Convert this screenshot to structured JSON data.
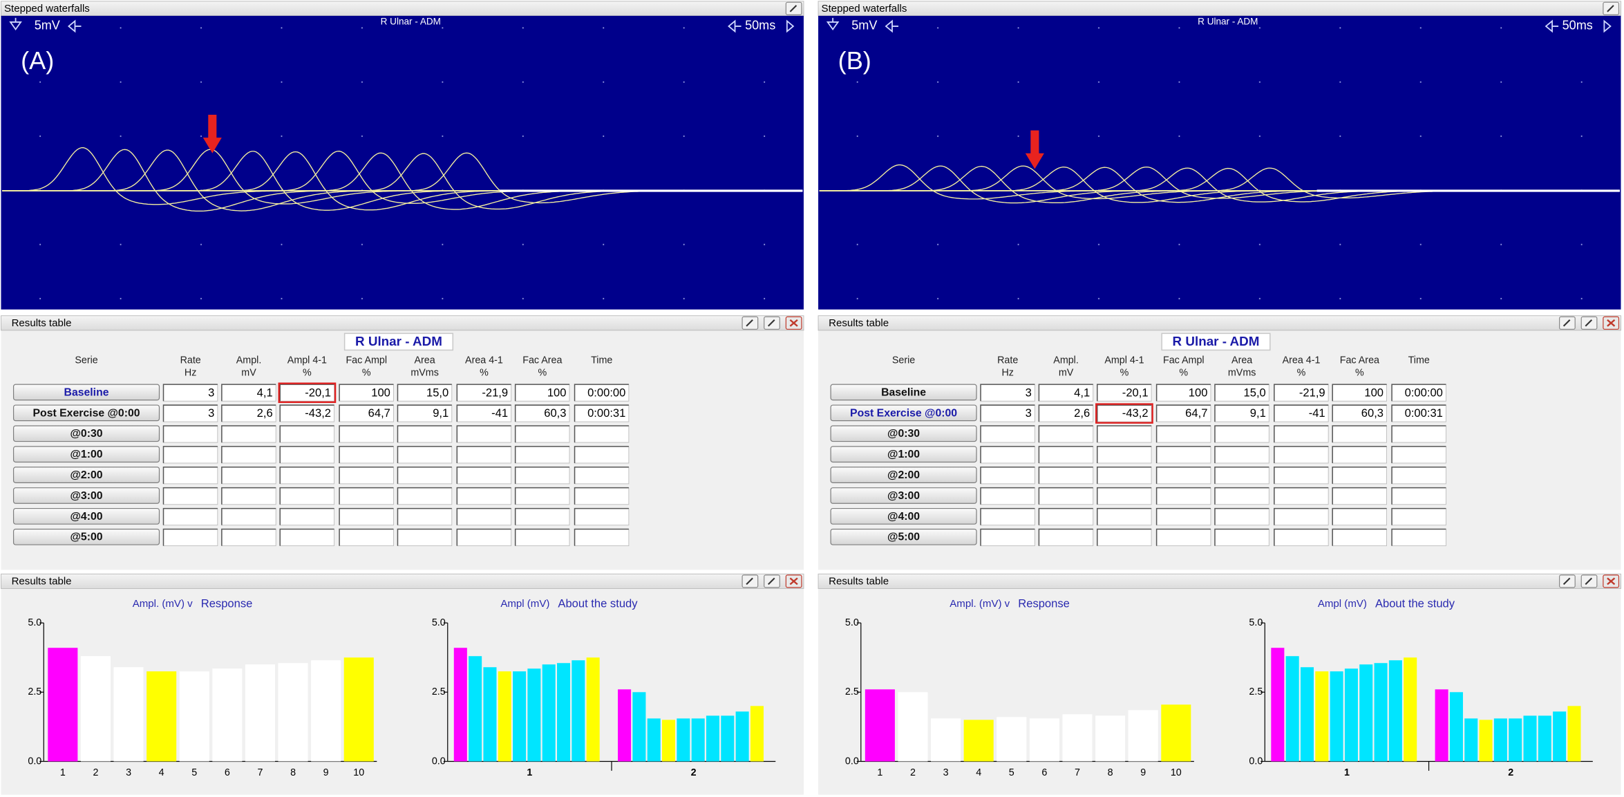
{
  "panels": [
    {
      "waveform": {
        "title": "Stepped waterfalls",
        "gain": "5mV",
        "label": "R Ulnar - ADM",
        "sweep": "50ms",
        "tag": "(A)"
      },
      "table": {
        "title": "Results table",
        "heading": "R Ulnar - ADM",
        "columns": [
          [
            "Serie"
          ],
          [
            "Rate",
            "Hz"
          ],
          [
            "Ampl.",
            "mV"
          ],
          [
            "Ampl 4-1",
            "%"
          ],
          [
            "Fac Ampl",
            "%"
          ],
          [
            "Area",
            "mVms"
          ],
          [
            "Area 4-1",
            "%"
          ],
          [
            "Fac Area",
            "%"
          ],
          [
            "Time"
          ]
        ],
        "selected_row": 0,
        "highlighted_cell": [
          0,
          2
        ],
        "rows": [
          {
            "serie": "Baseline",
            "cells": [
              "3",
              "4,1",
              "-20,1",
              "100",
              "15,0",
              "-21,9",
              "100",
              "0:00:00"
            ]
          },
          {
            "serie": "Post Exercise @0:00",
            "cells": [
              "3",
              "2,6",
              "-43,2",
              "64,7",
              "9,1",
              "-41",
              "60,3",
              "0:00:31"
            ]
          },
          {
            "serie": "@0:30"
          },
          {
            "serie": "@1:00"
          },
          {
            "serie": "@2:00"
          },
          {
            "serie": "@3:00"
          },
          {
            "serie": "@4:00"
          },
          {
            "serie": "@5:00"
          }
        ]
      },
      "summary": {
        "title": "Results table",
        "charts": [
          {
            "type": "bar",
            "title": "Ampl. (mV) v",
            "subtitle": "Response",
            "categories": [
              "1",
              "2",
              "3",
              "4",
              "5",
              "6",
              "7",
              "8",
              "9",
              "10"
            ],
            "values": [
              4.1,
              3.8,
              3.4,
              3.25,
              3.25,
              3.35,
              3.5,
              3.55,
              3.65,
              3.75
            ],
            "colors": [
              "#ff00ff",
              "#ffffff",
              "#ffffff",
              "#ffff00",
              "#ffffff",
              "#ffffff",
              "#ffffff",
              "#ffffff",
              "#ffffff",
              "#ffff00"
            ],
            "ylim": [
              0,
              5
            ],
            "yticks": [
              {
                "value": 0,
                "label": "0.0"
              },
              {
                "value": 2.5,
                "label": "2.5"
              },
              {
                "value": 5,
                "label": "5.0"
              }
            ]
          },
          {
            "type": "grouped_bar",
            "title": "Ampl (mV)",
            "subtitle": "About the study",
            "categories": [
              "1",
              "2"
            ],
            "series_values": [
              [
                4.1,
                3.8,
                3.4,
                3.25,
                3.25,
                3.35,
                3.5,
                3.55,
                3.65,
                3.75
              ],
              [
                2.6,
                2.5,
                1.55,
                1.5,
                1.55,
                1.55,
                1.65,
                1.65,
                1.8,
                2.0
              ]
            ],
            "colors": [
              "#ff00ff",
              "#00e5ff",
              "#00e5ff",
              "#ffff00",
              "#00e5ff",
              "#00e5ff",
              "#00e5ff",
              "#00e5ff",
              "#00e5ff",
              "#ffff00"
            ],
            "ylim": [
              0,
              5
            ],
            "yticks": [
              {
                "value": 0,
                "label": "0.0"
              },
              {
                "value": 2.5,
                "label": "2.5"
              },
              {
                "value": 5,
                "label": "5.0"
              }
            ]
          }
        ]
      }
    },
    {
      "waveform": {
        "title": "Stepped waterfalls",
        "gain": "5mV",
        "label": "R Ulnar - ADM",
        "sweep": "50ms",
        "tag": "(B)"
      },
      "table": {
        "title": "Results table",
        "heading": "R Ulnar - ADM",
        "columns": [
          [
            "Serie"
          ],
          [
            "Rate",
            "Hz"
          ],
          [
            "Ampl.",
            "mV"
          ],
          [
            "Ampl 4-1",
            "%"
          ],
          [
            "Fac Ampl",
            "%"
          ],
          [
            "Area",
            "mVms"
          ],
          [
            "Area 4-1",
            "%"
          ],
          [
            "Fac Area",
            "%"
          ],
          [
            "Time"
          ]
        ],
        "selected_row": 1,
        "highlighted_cell": [
          1,
          2
        ],
        "rows": [
          {
            "serie": "Baseline",
            "cells": [
              "3",
              "4,1",
              "-20,1",
              "100",
              "15,0",
              "-21,9",
              "100",
              "0:00:00"
            ]
          },
          {
            "serie": "Post Exercise @0:00",
            "cells": [
              "3",
              "2,6",
              "-43,2",
              "64,7",
              "9,1",
              "-41",
              "60,3",
              "0:00:31"
            ]
          },
          {
            "serie": "@0:30"
          },
          {
            "serie": "@1:00"
          },
          {
            "serie": "@2:00"
          },
          {
            "serie": "@3:00"
          },
          {
            "serie": "@4:00"
          },
          {
            "serie": "@5:00"
          }
        ]
      },
      "summary": {
        "title": "Results table",
        "charts": [
          {
            "type": "bar",
            "title": "Ampl. (mV) v",
            "subtitle": "Response",
            "categories": [
              "1",
              "2",
              "3",
              "4",
              "5",
              "6",
              "7",
              "8",
              "9",
              "10"
            ],
            "values": [
              2.6,
              2.5,
              1.55,
              1.5,
              1.6,
              1.55,
              1.7,
              1.65,
              1.85,
              2.05
            ],
            "colors": [
              "#ff00ff",
              "#ffffff",
              "#ffffff",
              "#ffff00",
              "#ffffff",
              "#ffffff",
              "#ffffff",
              "#ffffff",
              "#ffffff",
              "#ffff00"
            ],
            "ylim": [
              0,
              5
            ],
            "yticks": [
              {
                "value": 0,
                "label": "0.0"
              },
              {
                "value": 2.5,
                "label": "2.5"
              },
              {
                "value": 5,
                "label": "5.0"
              }
            ]
          },
          {
            "type": "grouped_bar",
            "title": "Ampl (mV)",
            "subtitle": "About the study",
            "categories": [
              "1",
              "2"
            ],
            "series_values": [
              [
                4.1,
                3.8,
                3.4,
                3.25,
                3.25,
                3.35,
                3.5,
                3.55,
                3.65,
                3.75
              ],
              [
                2.6,
                2.5,
                1.55,
                1.5,
                1.55,
                1.55,
                1.65,
                1.65,
                1.8,
                2.0
              ]
            ],
            "colors": [
              "#ff00ff",
              "#00e5ff",
              "#00e5ff",
              "#ffff00",
              "#00e5ff",
              "#00e5ff",
              "#00e5ff",
              "#00e5ff",
              "#00e5ff",
              "#ffff00"
            ],
            "ylim": [
              0,
              5
            ],
            "yticks": [
              {
                "value": 0,
                "label": "0.0"
              },
              {
                "value": 2.5,
                "label": "2.5"
              },
              {
                "value": 5,
                "label": "5.0"
              }
            ]
          }
        ]
      }
    }
  ]
}
